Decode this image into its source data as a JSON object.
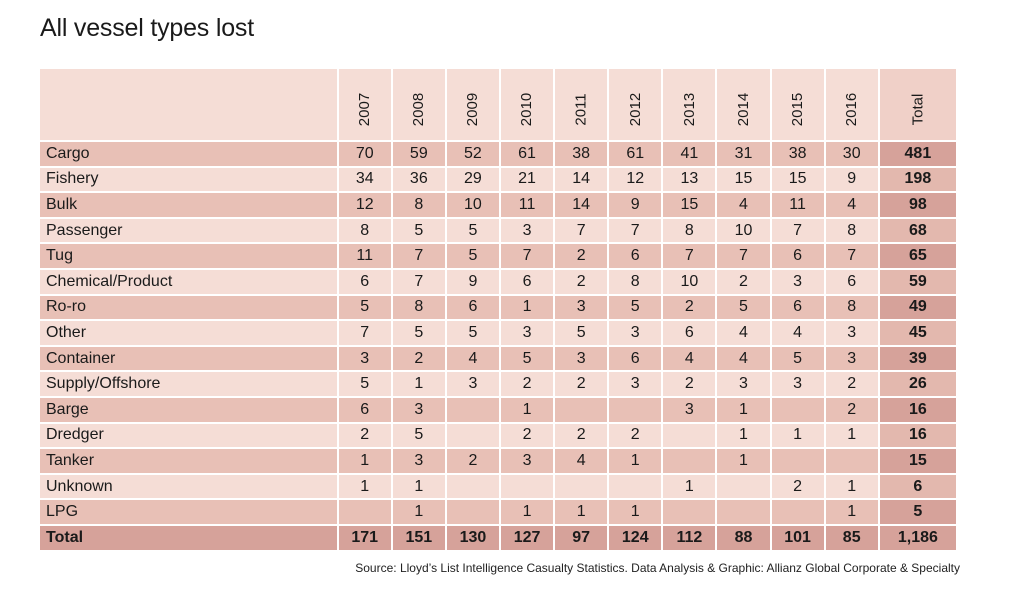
{
  "title": "All vessel types lost",
  "source": "Source: Lloyd’s List Intelligence Casualty Statistics.  Data Analysis & Graphic: Allianz Global Corporate & Specialty",
  "chart_data": {
    "type": "table",
    "title": "All vessel types lost",
    "columns": [
      "2007",
      "2008",
      "2009",
      "2010",
      "2011",
      "2012",
      "2013",
      "2014",
      "2015",
      "2016",
      "Total"
    ],
    "rows": [
      {
        "label": "Cargo",
        "values": [
          "70",
          "59",
          "52",
          "61",
          "38",
          "61",
          "41",
          "31",
          "38",
          "30",
          "481"
        ]
      },
      {
        "label": "Fishery",
        "values": [
          "34",
          "36",
          "29",
          "21",
          "14",
          "12",
          "13",
          "15",
          "15",
          "9",
          "198"
        ]
      },
      {
        "label": "Bulk",
        "values": [
          "12",
          "8",
          "10",
          "11",
          "14",
          "9",
          "15",
          "4",
          "11",
          "4",
          "98"
        ]
      },
      {
        "label": "Passenger",
        "values": [
          "8",
          "5",
          "5",
          "3",
          "7",
          "7",
          "8",
          "10",
          "7",
          "8",
          "68"
        ]
      },
      {
        "label": "Tug",
        "values": [
          "11",
          "7",
          "5",
          "7",
          "2",
          "6",
          "7",
          "7",
          "6",
          "7",
          "65"
        ]
      },
      {
        "label": "Chemical/Product",
        "values": [
          "6",
          "7",
          "9",
          "6",
          "2",
          "8",
          "10",
          "2",
          "3",
          "6",
          "59"
        ]
      },
      {
        "label": "Ro-ro",
        "values": [
          "5",
          "8",
          "6",
          "1",
          "3",
          "5",
          "2",
          "5",
          "6",
          "8",
          "49"
        ]
      },
      {
        "label": "Other",
        "values": [
          "7",
          "5",
          "5",
          "3",
          "5",
          "3",
          "6",
          "4",
          "4",
          "3",
          "45"
        ]
      },
      {
        "label": "Container",
        "values": [
          "3",
          "2",
          "4",
          "5",
          "3",
          "6",
          "4",
          "4",
          "5",
          "3",
          "39"
        ]
      },
      {
        "label": "Supply/Offshore",
        "values": [
          "5",
          "1",
          "3",
          "2",
          "2",
          "3",
          "2",
          "3",
          "3",
          "2",
          "26"
        ]
      },
      {
        "label": "Barge",
        "values": [
          "6",
          "3",
          "",
          "1",
          "",
          "",
          "3",
          "1",
          "",
          "2",
          "16"
        ]
      },
      {
        "label": "Dredger",
        "values": [
          "2",
          "5",
          "",
          "2",
          "2",
          "2",
          "",
          "1",
          "1",
          "1",
          "16"
        ]
      },
      {
        "label": "Tanker",
        "values": [
          "1",
          "3",
          "2",
          "3",
          "4",
          "1",
          "",
          "1",
          "",
          "",
          "15"
        ]
      },
      {
        "label": "Unknown",
        "values": [
          "1",
          "1",
          "",
          "",
          "",
          "",
          "1",
          "",
          "2",
          "1",
          "6"
        ]
      },
      {
        "label": "LPG",
        "values": [
          "",
          "1",
          "",
          "1",
          "1",
          "1",
          "",
          "",
          "",
          "1",
          "5"
        ]
      }
    ],
    "total_row": {
      "label": "Total",
      "values": [
        "171",
        "151",
        "130",
        "127",
        "97",
        "124",
        "112",
        "88",
        "101",
        "85",
        "1,186"
      ]
    }
  },
  "colors": {
    "header_bg": "#f5ddd6",
    "row_dark": "#e8c0b6",
    "row_light": "#f5ddd6",
    "total_col_dark": "#d6a29a",
    "total_col_light": "#e3b8ae",
    "total_row": "#d6a29a"
  }
}
